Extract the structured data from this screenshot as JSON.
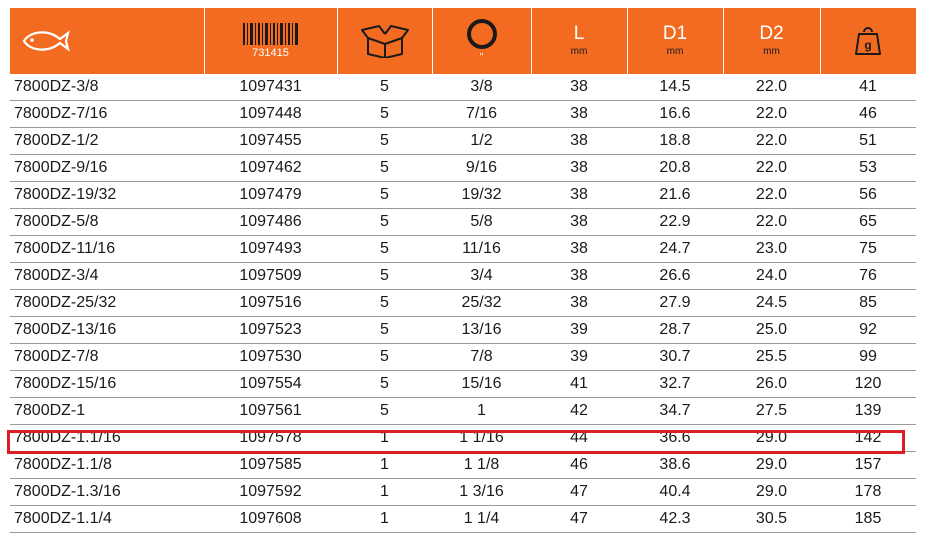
{
  "header": {
    "fish_icon": "fish-icon",
    "barcode_number": "731415",
    "box_icon": "box-icon",
    "socket_icon": "socket-icon",
    "socket_unit": "\"",
    "length_label": "L",
    "length_unit": "mm",
    "d1_label": "D1",
    "d1_unit": "mm",
    "d2_label": "D2",
    "d2_unit": "mm",
    "weight_label": "g"
  },
  "colors": {
    "header_bg": "#f26b21",
    "highlight": "#d91f26"
  },
  "rows": [
    [
      "7800DZ-3/8",
      "1097431",
      "5",
      "3/8",
      "38",
      "14.5",
      "22.0",
      "41"
    ],
    [
      "7800DZ-7/16",
      "1097448",
      "5",
      "7/16",
      "38",
      "16.6",
      "22.0",
      "46"
    ],
    [
      "7800DZ-1/2",
      "1097455",
      "5",
      "1/2",
      "38",
      "18.8",
      "22.0",
      "51"
    ],
    [
      "7800DZ-9/16",
      "1097462",
      "5",
      "9/16",
      "38",
      "20.8",
      "22.0",
      "53"
    ],
    [
      "7800DZ-19/32",
      "1097479",
      "5",
      "19/32",
      "38",
      "21.6",
      "22.0",
      "56"
    ],
    [
      "7800DZ-5/8",
      "1097486",
      "5",
      "5/8",
      "38",
      "22.9",
      "22.0",
      "65"
    ],
    [
      "7800DZ-11/16",
      "1097493",
      "5",
      "11/16",
      "38",
      "24.7",
      "23.0",
      "75"
    ],
    [
      "7800DZ-3/4",
      "1097509",
      "5",
      "3/4",
      "38",
      "26.6",
      "24.0",
      "76"
    ],
    [
      "7800DZ-25/32",
      "1097516",
      "5",
      "25/32",
      "38",
      "27.9",
      "24.5",
      "85"
    ],
    [
      "7800DZ-13/16",
      "1097523",
      "5",
      "13/16",
      "39",
      "28.7",
      "25.0",
      "92"
    ],
    [
      "7800DZ-7/8",
      "1097530",
      "5",
      "7/8",
      "39",
      "30.7",
      "25.5",
      "99"
    ],
    [
      "7800DZ-15/16",
      "1097554",
      "5",
      "15/16",
      "41",
      "32.7",
      "26.0",
      "120"
    ],
    [
      "7800DZ-1",
      "1097561",
      "5",
      "1",
      "42",
      "34.7",
      "27.5",
      "139"
    ],
    [
      "7800DZ-1.1/16",
      "1097578",
      "1",
      "1 1/16",
      "44",
      "36.6",
      "29.0",
      "142"
    ],
    [
      "7800DZ-1.1/8",
      "1097585",
      "1",
      "1 1/8",
      "46",
      "38.6",
      "29.0",
      "157"
    ],
    [
      "7800DZ-1.3/16",
      "1097592",
      "1",
      "1 3/16",
      "47",
      "40.4",
      "29.0",
      "178"
    ],
    [
      "7800DZ-1.1/4",
      "1097608",
      "1",
      "1 1/4",
      "47",
      "42.3",
      "30.5",
      "185"
    ]
  ]
}
